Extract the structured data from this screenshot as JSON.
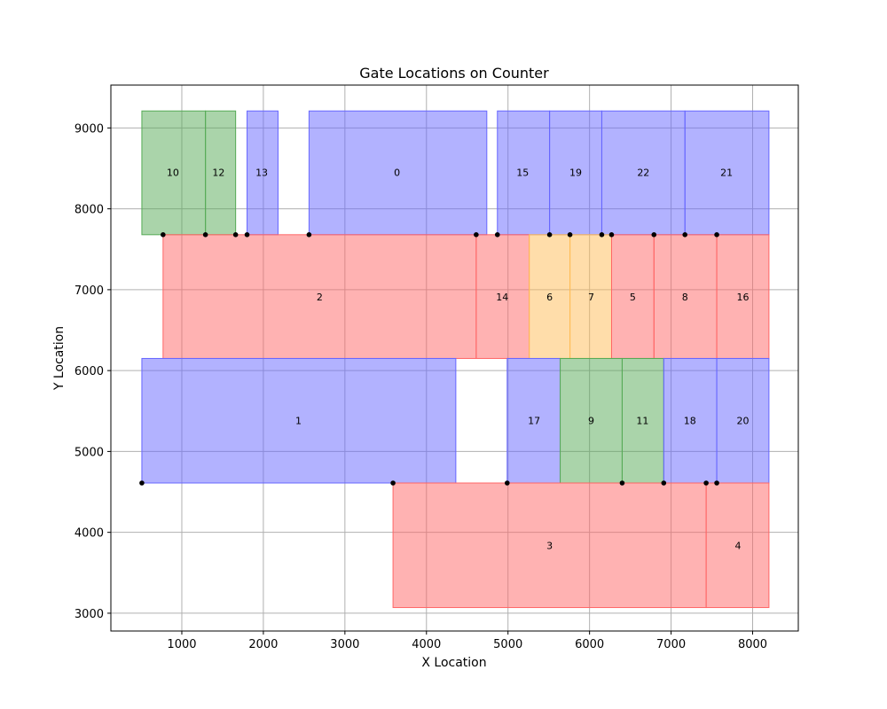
{
  "chart_data": {
    "type": "rectangles",
    "title": "Gate Locations on Counter",
    "xlabel": "X Location",
    "ylabel": "Y Location",
    "xlim": [
      130,
      8560
    ],
    "ylim": [
      2780,
      9530
    ],
    "xticks": [
      1000,
      2000,
      3000,
      4000,
      5000,
      6000,
      7000,
      8000
    ],
    "yticks": [
      3000,
      4000,
      5000,
      6000,
      7000,
      8000,
      9000
    ],
    "grid": true,
    "colors": {
      "blue": "#6666ff",
      "red": "#ff6666",
      "green": "#55aa55",
      "orange": "#ffbb55"
    },
    "gates": [
      {
        "label": "10",
        "x0": 510,
        "x1": 1290,
        "y0": 7680,
        "y1": 9210,
        "color": "green",
        "label_x": 890,
        "label_y": 8450
      },
      {
        "label": "12",
        "x0": 1290,
        "x1": 1660,
        "y0": 7680,
        "y1": 9210,
        "color": "green",
        "label_x": 1450,
        "label_y": 8450
      },
      {
        "label": "13",
        "x0": 1800,
        "x1": 2180,
        "y0": 7680,
        "y1": 9210,
        "color": "blue",
        "label_x": 1980,
        "label_y": 8450
      },
      {
        "label": "0",
        "x0": 2560,
        "x1": 4740,
        "y0": 7680,
        "y1": 9210,
        "color": "blue",
        "label_x": 3640,
        "label_y": 8450
      },
      {
        "label": "15",
        "x0": 4870,
        "x1": 5510,
        "y0": 7680,
        "y1": 9210,
        "color": "blue",
        "label_x": 5180,
        "label_y": 8450
      },
      {
        "label": "19",
        "x0": 5510,
        "x1": 6150,
        "y0": 7680,
        "y1": 9210,
        "color": "blue",
        "label_x": 5830,
        "label_y": 8450
      },
      {
        "label": "22",
        "x0": 6150,
        "x1": 7170,
        "y0": 7680,
        "y1": 9210,
        "color": "blue",
        "label_x": 6660,
        "label_y": 8450
      },
      {
        "label": "21",
        "x0": 7170,
        "x1": 8200,
        "y0": 7680,
        "y1": 9210,
        "color": "blue",
        "label_x": 7680,
        "label_y": 8450
      },
      {
        "label": "2",
        "x0": 770,
        "x1": 4610,
        "y0": 6150,
        "y1": 7680,
        "color": "red",
        "label_x": 2690,
        "label_y": 6910
      },
      {
        "label": "14",
        "x0": 4610,
        "x1": 5260,
        "y0": 6150,
        "y1": 7680,
        "color": "red",
        "label_x": 4930,
        "label_y": 6910
      },
      {
        "label": "6",
        "x0": 5260,
        "x1": 5760,
        "y0": 6150,
        "y1": 7680,
        "color": "orange",
        "label_x": 5510,
        "label_y": 6910
      },
      {
        "label": "7",
        "x0": 5760,
        "x1": 6270,
        "y0": 6150,
        "y1": 7680,
        "color": "orange",
        "label_x": 6020,
        "label_y": 6910
      },
      {
        "label": "5",
        "x0": 6270,
        "x1": 6790,
        "y0": 6150,
        "y1": 7680,
        "color": "red",
        "label_x": 6530,
        "label_y": 6910
      },
      {
        "label": "8",
        "x0": 6790,
        "x1": 7560,
        "y0": 6150,
        "y1": 7680,
        "color": "red",
        "label_x": 7170,
        "label_y": 6910
      },
      {
        "label": "16",
        "x0": 7560,
        "x1": 8200,
        "y0": 6150,
        "y1": 7680,
        "color": "red",
        "label_x": 7880,
        "label_y": 6910
      },
      {
        "label": "1",
        "x0": 510,
        "x1": 4360,
        "y0": 4610,
        "y1": 6150,
        "color": "blue",
        "label_x": 2430,
        "label_y": 5380
      },
      {
        "label": "17",
        "x0": 4990,
        "x1": 5640,
        "y0": 4610,
        "y1": 6150,
        "color": "blue",
        "label_x": 5320,
        "label_y": 5380
      },
      {
        "label": "9",
        "x0": 5640,
        "x1": 6400,
        "y0": 4610,
        "y1": 6150,
        "color": "green",
        "label_x": 6020,
        "label_y": 5380
      },
      {
        "label": "11",
        "x0": 6400,
        "x1": 6910,
        "y0": 4610,
        "y1": 6150,
        "color": "green",
        "label_x": 6650,
        "label_y": 5380
      },
      {
        "label": "18",
        "x0": 6910,
        "x1": 7560,
        "y0": 4610,
        "y1": 6150,
        "color": "blue",
        "label_x": 7230,
        "label_y": 5380
      },
      {
        "label": "20",
        "x0": 7560,
        "x1": 8200,
        "y0": 4610,
        "y1": 6150,
        "color": "blue",
        "label_x": 7880,
        "label_y": 5380
      },
      {
        "label": "3",
        "x0": 3590,
        "x1": 7430,
        "y0": 3070,
        "y1": 4610,
        "color": "red",
        "label_x": 5510,
        "label_y": 3840
      },
      {
        "label": "4",
        "x0": 7430,
        "x1": 8200,
        "y0": 3070,
        "y1": 4610,
        "color": "red",
        "label_x": 7820,
        "label_y": 3840
      }
    ],
    "points": [
      {
        "x": 510,
        "y": 4610
      },
      {
        "x": 3590,
        "y": 4610
      },
      {
        "x": 4990,
        "y": 4610
      },
      {
        "x": 6400,
        "y": 4610
      },
      {
        "x": 6910,
        "y": 4610
      },
      {
        "x": 7430,
        "y": 4610
      },
      {
        "x": 7560,
        "y": 4610
      },
      {
        "x": 770,
        "y": 7680
      },
      {
        "x": 1290,
        "y": 7680
      },
      {
        "x": 1660,
        "y": 7680
      },
      {
        "x": 1800,
        "y": 7680
      },
      {
        "x": 2560,
        "y": 7680
      },
      {
        "x": 4610,
        "y": 7680
      },
      {
        "x": 4870,
        "y": 7680
      },
      {
        "x": 5510,
        "y": 7680
      },
      {
        "x": 5760,
        "y": 7680
      },
      {
        "x": 6150,
        "y": 7680
      },
      {
        "x": 6270,
        "y": 7680
      },
      {
        "x": 6790,
        "y": 7680
      },
      {
        "x": 7170,
        "y": 7680
      },
      {
        "x": 7560,
        "y": 7680
      }
    ]
  }
}
